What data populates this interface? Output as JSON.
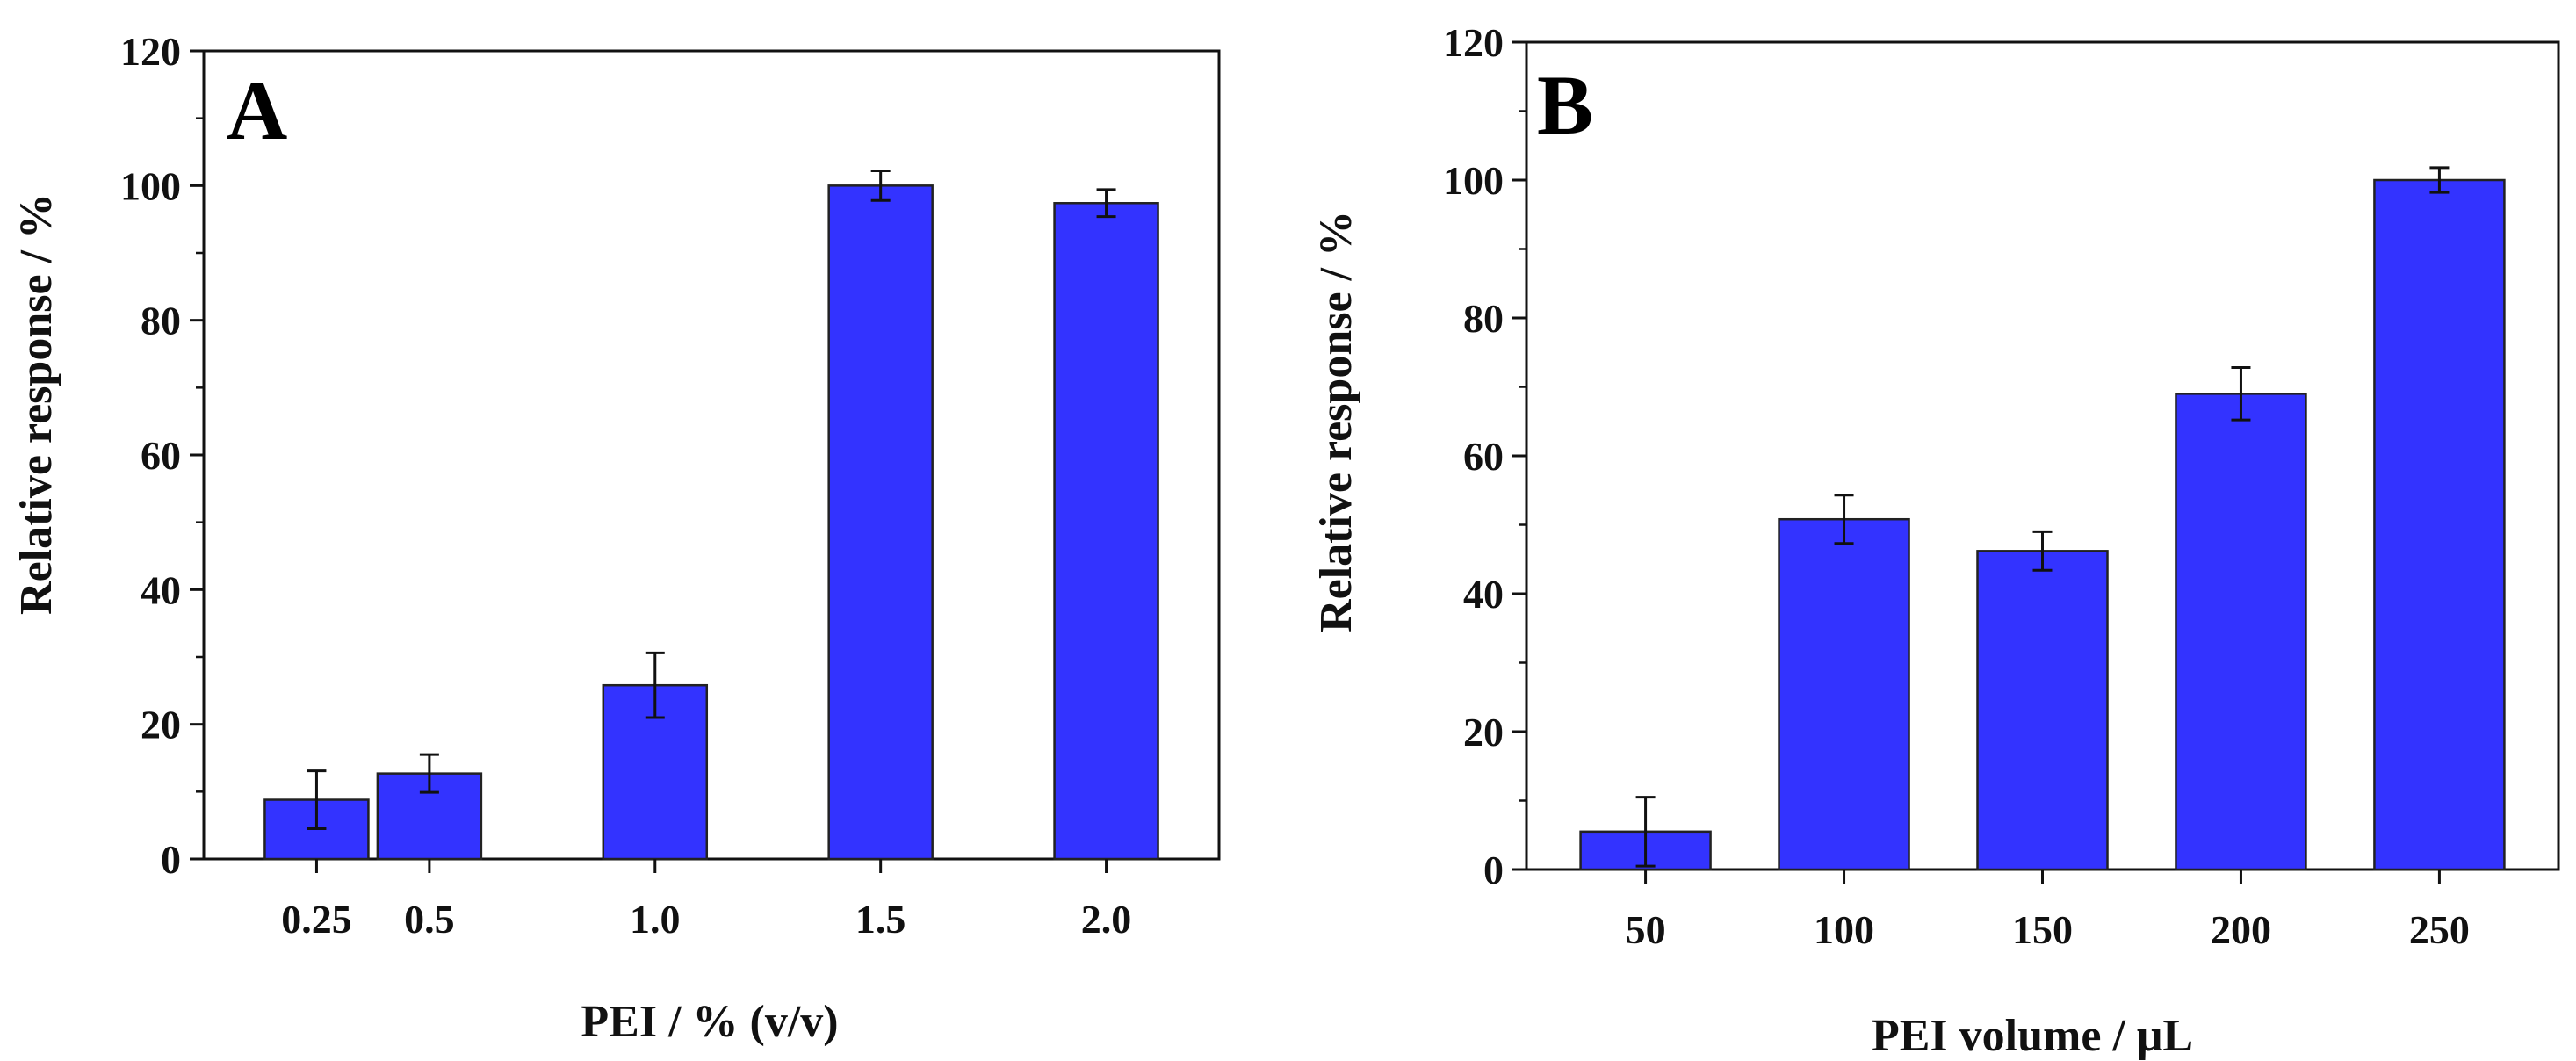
{
  "chart_data": [
    {
      "type": "bar",
      "panel_label": "A",
      "title": "",
      "xlabel": "PEI / % (v/v)",
      "ylabel": "Relative response / %",
      "ylim": [
        0,
        120
      ],
      "y_ticks": [
        "0",
        "20",
        "40",
        "60",
        "80",
        "100",
        "120"
      ],
      "categories": [
        "0.25",
        "0.5",
        "1.0",
        "1.5",
        "2.0"
      ],
      "x": [
        0.25,
        0.5,
        1.0,
        1.5,
        2.0
      ],
      "xlim": [
        0.0,
        2.25
      ],
      "values": [
        8.8,
        12.7,
        25.8,
        100,
        97.4
      ],
      "errors": [
        4.3,
        2.8,
        4.8,
        2.2,
        2.0
      ],
      "bar_color": "#3333ff"
    },
    {
      "type": "bar",
      "panel_label": "B",
      "title": "",
      "xlabel": "PEI volume / μL",
      "ylabel": "Relative response / %",
      "ylim": [
        0,
        120
      ],
      "y_ticks": [
        "0",
        "20",
        "40",
        "60",
        "80",
        "100",
        "120"
      ],
      "categories": [
        "50",
        "100",
        "150",
        "200",
        "250"
      ],
      "x": [
        50,
        100,
        150,
        200,
        250
      ],
      "xlim": [
        20,
        280
      ],
      "values": [
        5.5,
        50.8,
        46.2,
        69.0,
        100
      ],
      "errors": [
        5.0,
        3.5,
        2.8,
        3.8,
        1.8
      ],
      "bar_color": "#3333ff"
    }
  ]
}
